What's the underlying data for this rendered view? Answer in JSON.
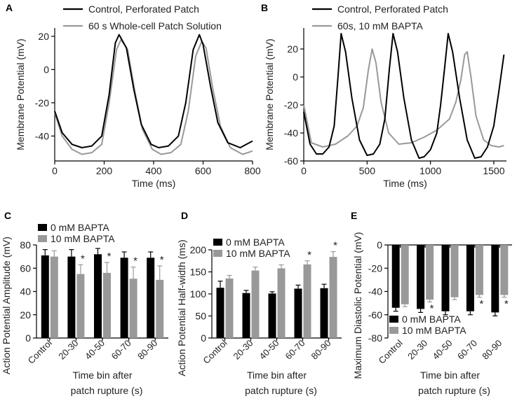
{
  "colors": {
    "black_series": "#000000",
    "gray_series": "#999999",
    "axis": "#000000"
  },
  "chart_data": [
    {
      "panel": "A",
      "type": "line",
      "xlabel": "Time (ms)",
      "ylabel": "Membrane Potential (mV)",
      "xlim": [
        0,
        800
      ],
      "ylim": [
        -55,
        25
      ],
      "xticks": [
        0,
        200,
        400,
        600,
        800
      ],
      "yticks": [
        -40,
        -20,
        0,
        20
      ],
      "legend": "top-left",
      "series": [
        {
          "name": "Control, Perforated Patch",
          "color": "#000000",
          "x": [
            0,
            30,
            70,
            110,
            150,
            190,
            220,
            245,
            260,
            290,
            320,
            350,
            390,
            420,
            460,
            500,
            530,
            560,
            585,
            600,
            630,
            660,
            700,
            750,
            800
          ],
          "y": [
            -25,
            -38,
            -45,
            -47,
            -46,
            -40,
            -15,
            16,
            21,
            13,
            -12,
            -33,
            -45,
            -47,
            -46,
            -40,
            -20,
            12,
            21,
            15,
            -10,
            -32,
            -44,
            -47,
            -43
          ]
        },
        {
          "name": "60 s Whole-cell Patch Solution",
          "color": "#999999",
          "x": [
            0,
            30,
            70,
            110,
            150,
            190,
            220,
            250,
            268,
            295,
            325,
            355,
            395,
            430,
            470,
            510,
            540,
            570,
            595,
            612,
            640,
            670,
            710,
            760,
            800
          ],
          "y": [
            -26,
            -40,
            -48,
            -51,
            -50,
            -45,
            -20,
            12,
            18,
            12,
            -14,
            -36,
            -48,
            -51,
            -50,
            -45,
            -25,
            8,
            17,
            13,
            -12,
            -34,
            -47,
            -51,
            -49
          ]
        }
      ]
    },
    {
      "panel": "B",
      "type": "line",
      "xlabel": "Time (ms)",
      "ylabel": "Membrane Potential (mV)",
      "xlim": [
        0,
        1600
      ],
      "ylim": [
        -60,
        35
      ],
      "xticks": [
        0,
        500,
        1000,
        1500
      ],
      "yticks": [
        -60,
        -40,
        -20,
        0,
        20
      ],
      "legend": "top-left",
      "series": [
        {
          "name": "Control, Perforated Patch",
          "color": "#000000",
          "x": [
            0,
            50,
            100,
            150,
            200,
            240,
            270,
            295,
            330,
            380,
            440,
            500,
            550,
            600,
            640,
            675,
            705,
            740,
            790,
            850,
            910,
            950,
            1000,
            1050,
            1080,
            1110,
            1140,
            1175,
            1230,
            1290,
            1350,
            1400,
            1450,
            1500,
            1540,
            1580
          ],
          "y": [
            -25,
            -48,
            -55,
            -55,
            -50,
            -35,
            0,
            31,
            18,
            -15,
            -45,
            -56,
            -55,
            -48,
            -30,
            5,
            31,
            18,
            -15,
            -45,
            -58,
            -57,
            -52,
            -40,
            -20,
            5,
            31,
            18,
            -15,
            -45,
            -58,
            -57,
            -50,
            -35,
            -10,
            16
          ]
        },
        {
          "name": "60s, 10 mM BAPTA",
          "color": "#999999",
          "x": [
            0,
            60,
            150,
            250,
            350,
            420,
            470,
            510,
            540,
            570,
            610,
            670,
            750,
            850,
            950,
            1050,
            1150,
            1200,
            1240,
            1270,
            1290,
            1320,
            1360,
            1420,
            1480,
            1540,
            1580
          ],
          "y": [
            -20,
            -47,
            -50,
            -48,
            -42,
            -35,
            -22,
            5,
            20,
            10,
            -18,
            -40,
            -48,
            -47,
            -43,
            -38,
            -30,
            -18,
            -2,
            16,
            18,
            0,
            -28,
            -45,
            -49,
            -50,
            -49
          ]
        }
      ]
    },
    {
      "panel": "C",
      "type": "bar",
      "categories": [
        "Control",
        "20-30",
        "40-50",
        "60-70",
        "80-90"
      ],
      "xlabel": "Time bin after patch rupture (s)",
      "xlabel_lines": [
        "Time bin after",
        "patch rupture (s)"
      ],
      "ylabel": "Action Potential Amplitude (mV)",
      "ylim": [
        0,
        80
      ],
      "yticks": [
        0,
        20,
        40,
        60,
        80
      ],
      "legend": "top-left",
      "series": [
        {
          "name": "0 mM BAPTA",
          "color": "#000000",
          "values": [
            71,
            70,
            72,
            69,
            69
          ],
          "errors": [
            5,
            6,
            5,
            5,
            5
          ]
        },
        {
          "name": "10 mM BAPTA",
          "color": "#999999",
          "values": [
            70,
            55,
            56,
            51,
            50
          ],
          "errors": [
            5,
            8,
            9,
            10,
            12
          ]
        }
      ],
      "significance": [
        "",
        "*",
        "*",
        "*",
        "*"
      ]
    },
    {
      "panel": "D",
      "type": "bar",
      "categories": [
        "Control",
        "20-30",
        "40-50",
        "60-70",
        "80-90"
      ],
      "xlabel": "Time bin after patch rupture (s)",
      "xlabel_lines": [
        "Time bin after",
        "patch rupture (s)"
      ],
      "ylabel": "Action Potential Half-width (ms)",
      "ylim": [
        0,
        200
      ],
      "yticks": [
        0,
        50,
        100,
        150,
        200
      ],
      "legend": "top-left",
      "series": [
        {
          "name": "0 mM BAPTA",
          "color": "#000000",
          "values": [
            114,
            102,
            101,
            112,
            113
          ],
          "errors": [
            15,
            6,
            4,
            8,
            9
          ]
        },
        {
          "name": "10 mM BAPTA",
          "color": "#999999",
          "values": [
            135,
            153,
            158,
            167,
            184
          ],
          "errors": [
            7,
            8,
            8,
            8,
            12
          ]
        }
      ],
      "significance": [
        "",
        "",
        "",
        "*",
        "*"
      ]
    },
    {
      "panel": "E",
      "type": "bar",
      "categories": [
        "Control",
        "20-30",
        "40-50",
        "60-70",
        "80-90"
      ],
      "xlabel": "Time bin after patch rupture (s)",
      "xlabel_lines": [
        "Time bin after",
        "patch rupture (s)"
      ],
      "ylabel": "Maximum Diastolic Potential (mV)",
      "ylim": [
        -80,
        0
      ],
      "yticks": [
        0,
        -20,
        -40,
        -60,
        -80
      ],
      "legend": "bottom-left",
      "series": [
        {
          "name": "0 mM BAPTA",
          "color": "#000000",
          "values": [
            -54,
            -55,
            -57,
            -57,
            -58
          ],
          "errors": [
            3,
            3,
            3,
            3,
            3
          ]
        },
        {
          "name": "10 mM BAPTA",
          "color": "#999999",
          "values": [
            -51,
            -47,
            -45,
            -43,
            -43
          ],
          "errors": [
            2,
            2,
            2,
            2,
            2
          ]
        }
      ],
      "significance": [
        "",
        "*",
        "",
        "*",
        "*"
      ],
      "significance_series": [
        0,
        1,
        0,
        1,
        1
      ]
    }
  ]
}
